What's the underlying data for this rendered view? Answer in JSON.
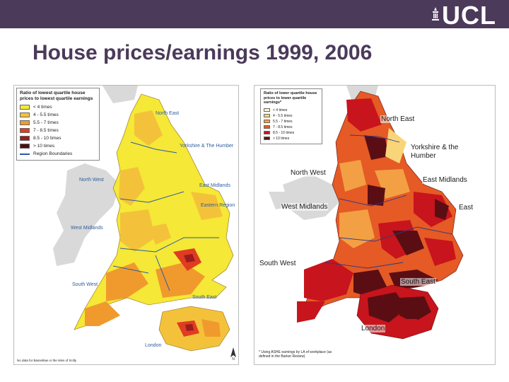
{
  "header": {
    "logo_text": "UCL",
    "bar_color": "#4b3a5a"
  },
  "slide": {
    "title": "House prices/earnings 1999, 2006"
  },
  "left_map": {
    "legend_title": "Ratio of lowest quartile house prices to lowest quartile earnings",
    "legend": [
      {
        "label": "< 4 times",
        "color": "#f5e836"
      },
      {
        "label": "4 - 5.5 times",
        "color": "#f4c23a"
      },
      {
        "label": "5.5 - 7 times",
        "color": "#f09a2d"
      },
      {
        "label": "7 - 8.5 times",
        "color": "#e03c22"
      },
      {
        "label": "8.5 - 10 times",
        "color": "#9b1c1c"
      },
      {
        "label": "> 10 times",
        "color": "#4a1010"
      }
    ],
    "boundary_label": "Region Boundaries",
    "regions": {
      "north_east": "North East",
      "yorkshire": "Yorkshire & The Humber",
      "north_west": "North West",
      "east_midlands": "East Midlands",
      "eastern": "Eastern Region",
      "west_midlands": "West Midlands",
      "south_west": "South West",
      "south_east": "South East",
      "london": "London"
    },
    "footnote": "No data for Bassetlaw or the Isles of Scilly"
  },
  "right_map": {
    "legend_title": "Ratio of lower quartile house prices to lower quartile earnings*",
    "legend": [
      {
        "label": "< 4 times",
        "color": "#fff6c8"
      },
      {
        "label": "4 - 5.5 times",
        "color": "#f9d57a"
      },
      {
        "label": "5.5 - 7 times",
        "color": "#f2a043"
      },
      {
        "label": "7 - 8.5 times",
        "color": "#e55a25"
      },
      {
        "label": "8.5 - 10 times",
        "color": "#c8141c"
      },
      {
        "label": "> 10 times",
        "color": "#5a0e14"
      }
    ],
    "regions": {
      "north_east": "North East",
      "yorkshire": "Yorkshire & the Humber",
      "north_west": "North West",
      "east_midlands": "East Midlands",
      "west_midlands": "West Midlands",
      "east": "East",
      "south_west": "South West",
      "south_east": "South East",
      "london": "London"
    },
    "footnote": "* Using ASHE earnings by LA of workplace (as defined in the Barker Review)"
  }
}
